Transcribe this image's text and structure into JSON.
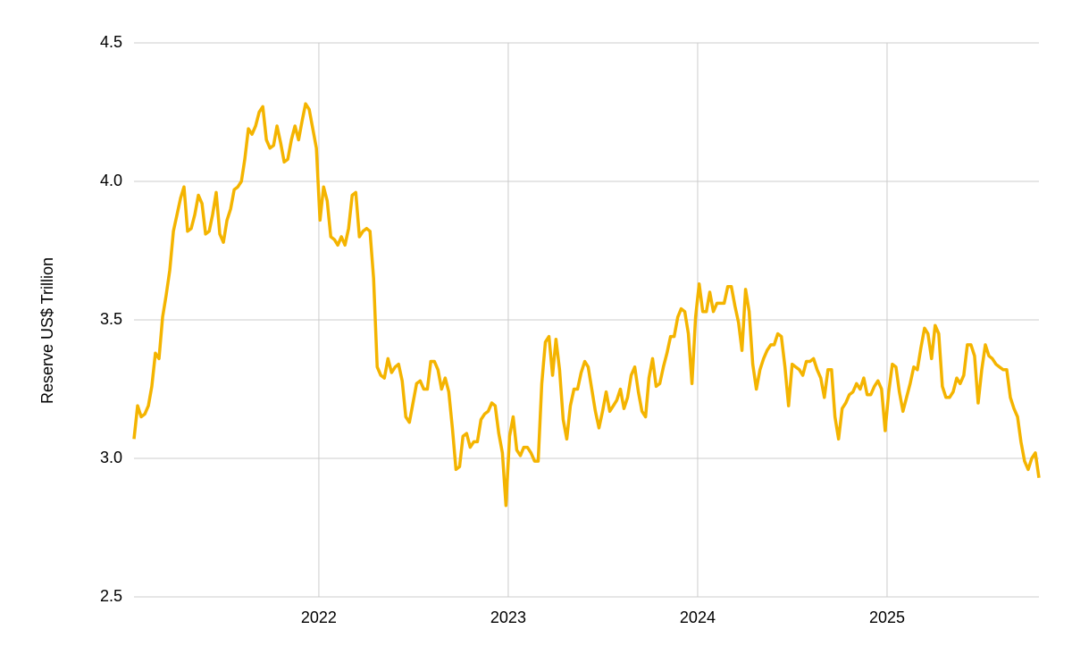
{
  "chart_data": {
    "type": "line",
    "y_label": "Reserve US$ Trillion",
    "xlim": [
      2021.024,
      2025.802
    ],
    "xticks": [
      2022,
      2023,
      2024,
      2025
    ],
    "ylim": [
      2.5,
      4.5
    ],
    "yticks": [
      2.5,
      {
        "value": 3.0,
        "label": "3.0"
      },
      3.5,
      {
        "value": 4.0,
        "label": "4.0"
      },
      4.5
    ],
    "grid": true,
    "color": "#f4b400",
    "x": [
      2021.024,
      2021.043,
      2021.062,
      2021.081,
      2021.1,
      2021.118,
      2021.137,
      2021.156,
      2021.175,
      2021.194,
      2021.213,
      2021.232,
      2021.251,
      2021.27,
      2021.288,
      2021.307,
      2021.326,
      2021.345,
      2021.364,
      2021.383,
      2021.402,
      2021.421,
      2021.439,
      2021.458,
      2021.477,
      2021.496,
      2021.515,
      2021.534,
      2021.553,
      2021.572,
      2021.591,
      2021.609,
      2021.628,
      2021.647,
      2021.666,
      2021.685,
      2021.704,
      2021.723,
      2021.742,
      2021.761,
      2021.779,
      2021.798,
      2021.817,
      2021.836,
      2021.855,
      2021.874,
      2021.893,
      2021.912,
      2021.93,
      2021.949,
      2021.968,
      2021.987,
      2022.006,
      2022.025,
      2022.044,
      2022.063,
      2022.082,
      2022.1,
      2022.119,
      2022.138,
      2022.157,
      2022.176,
      2022.195,
      2022.214,
      2022.233,
      2022.252,
      2022.27,
      2022.289,
      2022.308,
      2022.327,
      2022.346,
      2022.365,
      2022.384,
      2022.403,
      2022.421,
      2022.44,
      2022.459,
      2022.478,
      2022.497,
      2022.516,
      2022.535,
      2022.554,
      2022.573,
      2022.591,
      2022.61,
      2022.629,
      2022.648,
      2022.667,
      2022.686,
      2022.705,
      2022.724,
      2022.743,
      2022.761,
      2022.78,
      2022.799,
      2022.818,
      2022.837,
      2022.856,
      2022.875,
      2022.894,
      2022.913,
      2022.931,
      2022.95,
      2022.969,
      2022.988,
      2023.007,
      2023.026,
      2023.045,
      2023.064,
      2023.082,
      2023.101,
      2023.12,
      2023.139,
      2023.158,
      2023.177,
      2023.196,
      2023.215,
      2023.234,
      2023.252,
      2023.271,
      2023.29,
      2023.309,
      2023.328,
      2023.347,
      2023.366,
      2023.385,
      2023.404,
      2023.422,
      2023.441,
      2023.46,
      2023.479,
      2023.498,
      2023.517,
      2023.536,
      2023.555,
      2023.573,
      2023.592,
      2023.611,
      2023.63,
      2023.649,
      2023.668,
      2023.687,
      2023.706,
      2023.725,
      2023.743,
      2023.762,
      2023.781,
      2023.8,
      2023.819,
      2023.838,
      2023.857,
      2023.876,
      2023.895,
      2023.913,
      2023.932,
      2023.951,
      2023.97,
      2023.989,
      2024.008,
      2024.027,
      2024.046,
      2024.064,
      2024.083,
      2024.102,
      2024.121,
      2024.14,
      2024.159,
      2024.178,
      2024.197,
      2024.216,
      2024.234,
      2024.253,
      2024.272,
      2024.291,
      2024.31,
      2024.329,
      2024.348,
      2024.367,
      2024.386,
      2024.404,
      2024.423,
      2024.442,
      2024.461,
      2024.48,
      2024.499,
      2024.518,
      2024.537,
      2024.555,
      2024.574,
      2024.593,
      2024.612,
      2024.631,
      2024.65,
      2024.669,
      2024.688,
      2024.707,
      2024.725,
      2024.744,
      2024.763,
      2024.782,
      2024.801,
      2024.82,
      2024.839,
      2024.858,
      2024.877,
      2024.895,
      2024.914,
      2024.933,
      2024.952,
      2024.971,
      2024.99,
      2025.009,
      2025.028,
      2025.047,
      2025.065,
      2025.084,
      2025.103,
      2025.122,
      2025.141,
      2025.16,
      2025.179,
      2025.198,
      2025.216,
      2025.235,
      2025.254,
      2025.273,
      2025.292,
      2025.311,
      2025.33,
      2025.349,
      2025.368,
      2025.386,
      2025.405,
      2025.424,
      2025.443,
      2025.462,
      2025.481,
      2025.5,
      2025.519,
      2025.538,
      2025.556,
      2025.575,
      2025.594,
      2025.613,
      2025.632,
      2025.651,
      2025.67,
      2025.689,
      2025.707,
      2025.726,
      2025.745,
      2025.764,
      2025.783,
      2025.802
    ],
    "values": [
      3.07,
      3.19,
      3.15,
      3.16,
      3.19,
      3.26,
      3.38,
      3.36,
      3.51,
      3.59,
      3.68,
      3.82,
      3.88,
      3.94,
      3.98,
      3.82,
      3.83,
      3.88,
      3.95,
      3.92,
      3.81,
      3.82,
      3.88,
      3.96,
      3.81,
      3.78,
      3.86,
      3.9,
      3.97,
      3.98,
      4.0,
      4.08,
      4.19,
      4.17,
      4.2,
      4.25,
      4.27,
      4.15,
      4.12,
      4.13,
      4.2,
      4.14,
      4.07,
      4.08,
      4.15,
      4.2,
      4.15,
      4.22,
      4.28,
      4.26,
      4.19,
      4.12,
      3.86,
      3.98,
      3.93,
      3.8,
      3.79,
      3.77,
      3.8,
      3.77,
      3.83,
      3.95,
      3.96,
      3.8,
      3.82,
      3.83,
      3.82,
      3.65,
      3.33,
      3.3,
      3.29,
      3.36,
      3.31,
      3.33,
      3.34,
      3.28,
      3.15,
      3.13,
      3.2,
      3.27,
      3.28,
      3.25,
      3.25,
      3.35,
      3.35,
      3.32,
      3.25,
      3.29,
      3.24,
      3.11,
      2.96,
      2.97,
      3.08,
      3.09,
      3.04,
      3.06,
      3.06,
      3.14,
      3.16,
      3.17,
      3.2,
      3.19,
      3.09,
      3.02,
      2.83,
      3.08,
      3.15,
      3.03,
      3.01,
      3.04,
      3.04,
      3.02,
      2.99,
      2.99,
      3.27,
      3.42,
      3.44,
      3.3,
      3.43,
      3.32,
      3.14,
      3.07,
      3.19,
      3.25,
      3.25,
      3.31,
      3.35,
      3.33,
      3.25,
      3.17,
      3.11,
      3.17,
      3.24,
      3.17,
      3.19,
      3.21,
      3.25,
      3.18,
      3.22,
      3.3,
      3.33,
      3.24,
      3.17,
      3.15,
      3.29,
      3.36,
      3.26,
      3.27,
      3.33,
      3.38,
      3.44,
      3.44,
      3.51,
      3.54,
      3.53,
      3.45,
      3.27,
      3.51,
      3.63,
      3.53,
      3.53,
      3.6,
      3.53,
      3.56,
      3.56,
      3.56,
      3.62,
      3.62,
      3.55,
      3.49,
      3.39,
      3.61,
      3.53,
      3.34,
      3.25,
      3.32,
      3.36,
      3.39,
      3.41,
      3.41,
      3.45,
      3.44,
      3.33,
      3.19,
      3.34,
      3.33,
      3.32,
      3.3,
      3.35,
      3.35,
      3.36,
      3.32,
      3.29,
      3.22,
      3.32,
      3.32,
      3.15,
      3.07,
      3.18,
      3.2,
      3.23,
      3.24,
      3.27,
      3.25,
      3.29,
      3.23,
      3.23,
      3.26,
      3.28,
      3.25,
      3.1,
      3.24,
      3.34,
      3.33,
      3.24,
      3.17,
      3.22,
      3.27,
      3.33,
      3.32,
      3.4,
      3.47,
      3.45,
      3.36,
      3.48,
      3.45,
      3.26,
      3.22,
      3.22,
      3.24,
      3.29,
      3.27,
      3.3,
      3.41,
      3.41,
      3.37,
      3.2,
      3.32,
      3.41,
      3.37,
      3.36,
      3.34,
      3.33,
      3.32,
      3.32,
      3.22,
      3.18,
      3.15,
      3.06,
      2.99,
      2.96,
      3.0,
      3.02,
      2.93
    ]
  }
}
